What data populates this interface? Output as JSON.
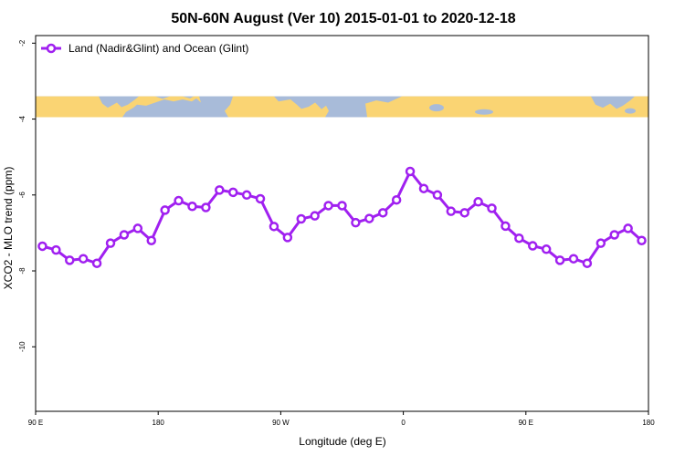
{
  "chart_data": {
    "type": "line",
    "title": "50N-60N August (Ver 10)   2015-01-01 to 2020-12-18",
    "xlabel": "Longitude (deg E)",
    "ylabel": "XCO2 - MLO trend (ppm)",
    "xlim": [
      -90,
      180
    ],
    "ylim": [
      -11.7,
      -1.8
    ],
    "x_ticks": [
      {
        "value": -90,
        "label": "90 E"
      },
      {
        "value": -36,
        "label": "180"
      },
      {
        "value": 18,
        "label": "90 W"
      },
      {
        "value": 72,
        "label": "0"
      },
      {
        "value": 126,
        "label": "90 E"
      },
      {
        "value": 180,
        "label": "180"
      }
    ],
    "y_ticks": [
      {
        "value": -2,
        "label": "-2"
      },
      {
        "value": -4,
        "label": "-4"
      },
      {
        "value": -6,
        "label": "-6"
      },
      {
        "value": -8,
        "label": "-8"
      },
      {
        "value": -10,
        "label": "-10"
      }
    ],
    "map_band": {
      "ylim": [
        -3.4,
        -3.95
      ],
      "ocean_color": "#a8bbd9",
      "land_color": "#fad473"
    },
    "series": [
      {
        "name": "Land (Nadir&Glint) and Ocean (Glint)",
        "color": "#a020f0",
        "x": [
          -87,
          -81,
          -75,
          -69,
          -63,
          -57,
          -51,
          -45,
          -39,
          -33,
          -27,
          -21,
          -15,
          -9,
          -3,
          3,
          9,
          15,
          21,
          27,
          33,
          39,
          45,
          51,
          57,
          63,
          69,
          75,
          81,
          87,
          93,
          99,
          105,
          111,
          117,
          123,
          129,
          135,
          141,
          147,
          153,
          159,
          165,
          171,
          177
        ],
        "values": [
          -7.35,
          -7.45,
          -7.72,
          -7.68,
          -7.8,
          -7.27,
          -7.05,
          -6.88,
          -7.2,
          -6.4,
          -6.15,
          -6.3,
          -6.33,
          -5.87,
          -5.93,
          -6.0,
          -6.1,
          -6.83,
          -7.12,
          -6.63,
          -6.55,
          -6.28,
          -6.28,
          -6.73,
          -6.62,
          -6.47,
          -6.13,
          -5.38,
          -5.83,
          -6.0,
          -6.43,
          -6.47,
          -6.18,
          -6.35,
          -6.82,
          -7.14,
          -7.34,
          -7.43,
          -7.72,
          -7.68,
          -7.8,
          -7.27,
          -7.05,
          -6.88,
          -7.2
        ]
      }
    ]
  }
}
